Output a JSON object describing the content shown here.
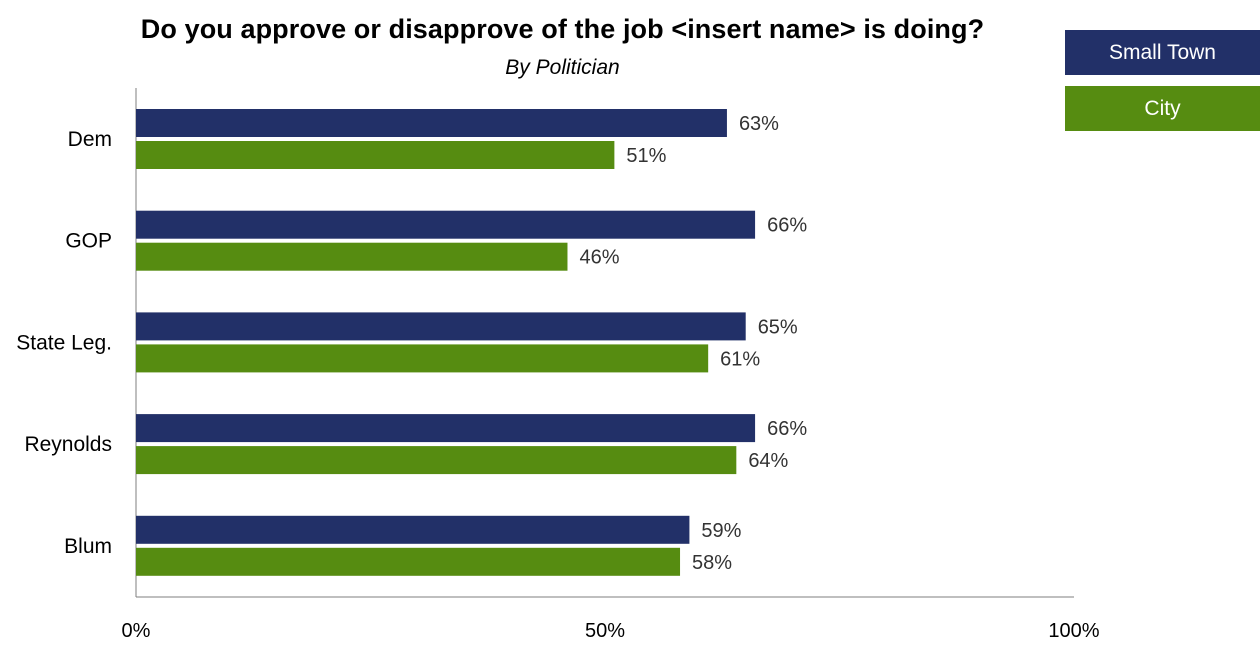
{
  "chart_data": {
    "type": "bar",
    "orientation": "horizontal",
    "title": "Do you approve or disapprove of the job <insert name> is doing?",
    "subtitle": "By Politician",
    "categories": [
      "Dem",
      "GOP",
      "State Leg.",
      "Reynolds",
      "Blum"
    ],
    "series": [
      {
        "name": "Small Town",
        "color": "#223068",
        "values": [
          63,
          66,
          65,
          66,
          59
        ],
        "labels": [
          "63%",
          "66%",
          "65%",
          "66%",
          "59%"
        ]
      },
      {
        "name": "City",
        "color": "#568c11",
        "values": [
          51,
          46,
          61,
          64,
          58
        ],
        "labels": [
          "51%",
          "46%",
          "61%",
          "64%",
          "58%"
        ]
      }
    ],
    "xlim": [
      0,
      100
    ],
    "ticks": [
      0,
      50,
      100
    ],
    "tick_labels": [
      "0%",
      "50%",
      "100%"
    ],
    "grid": false,
    "legend_position": "top-right"
  }
}
